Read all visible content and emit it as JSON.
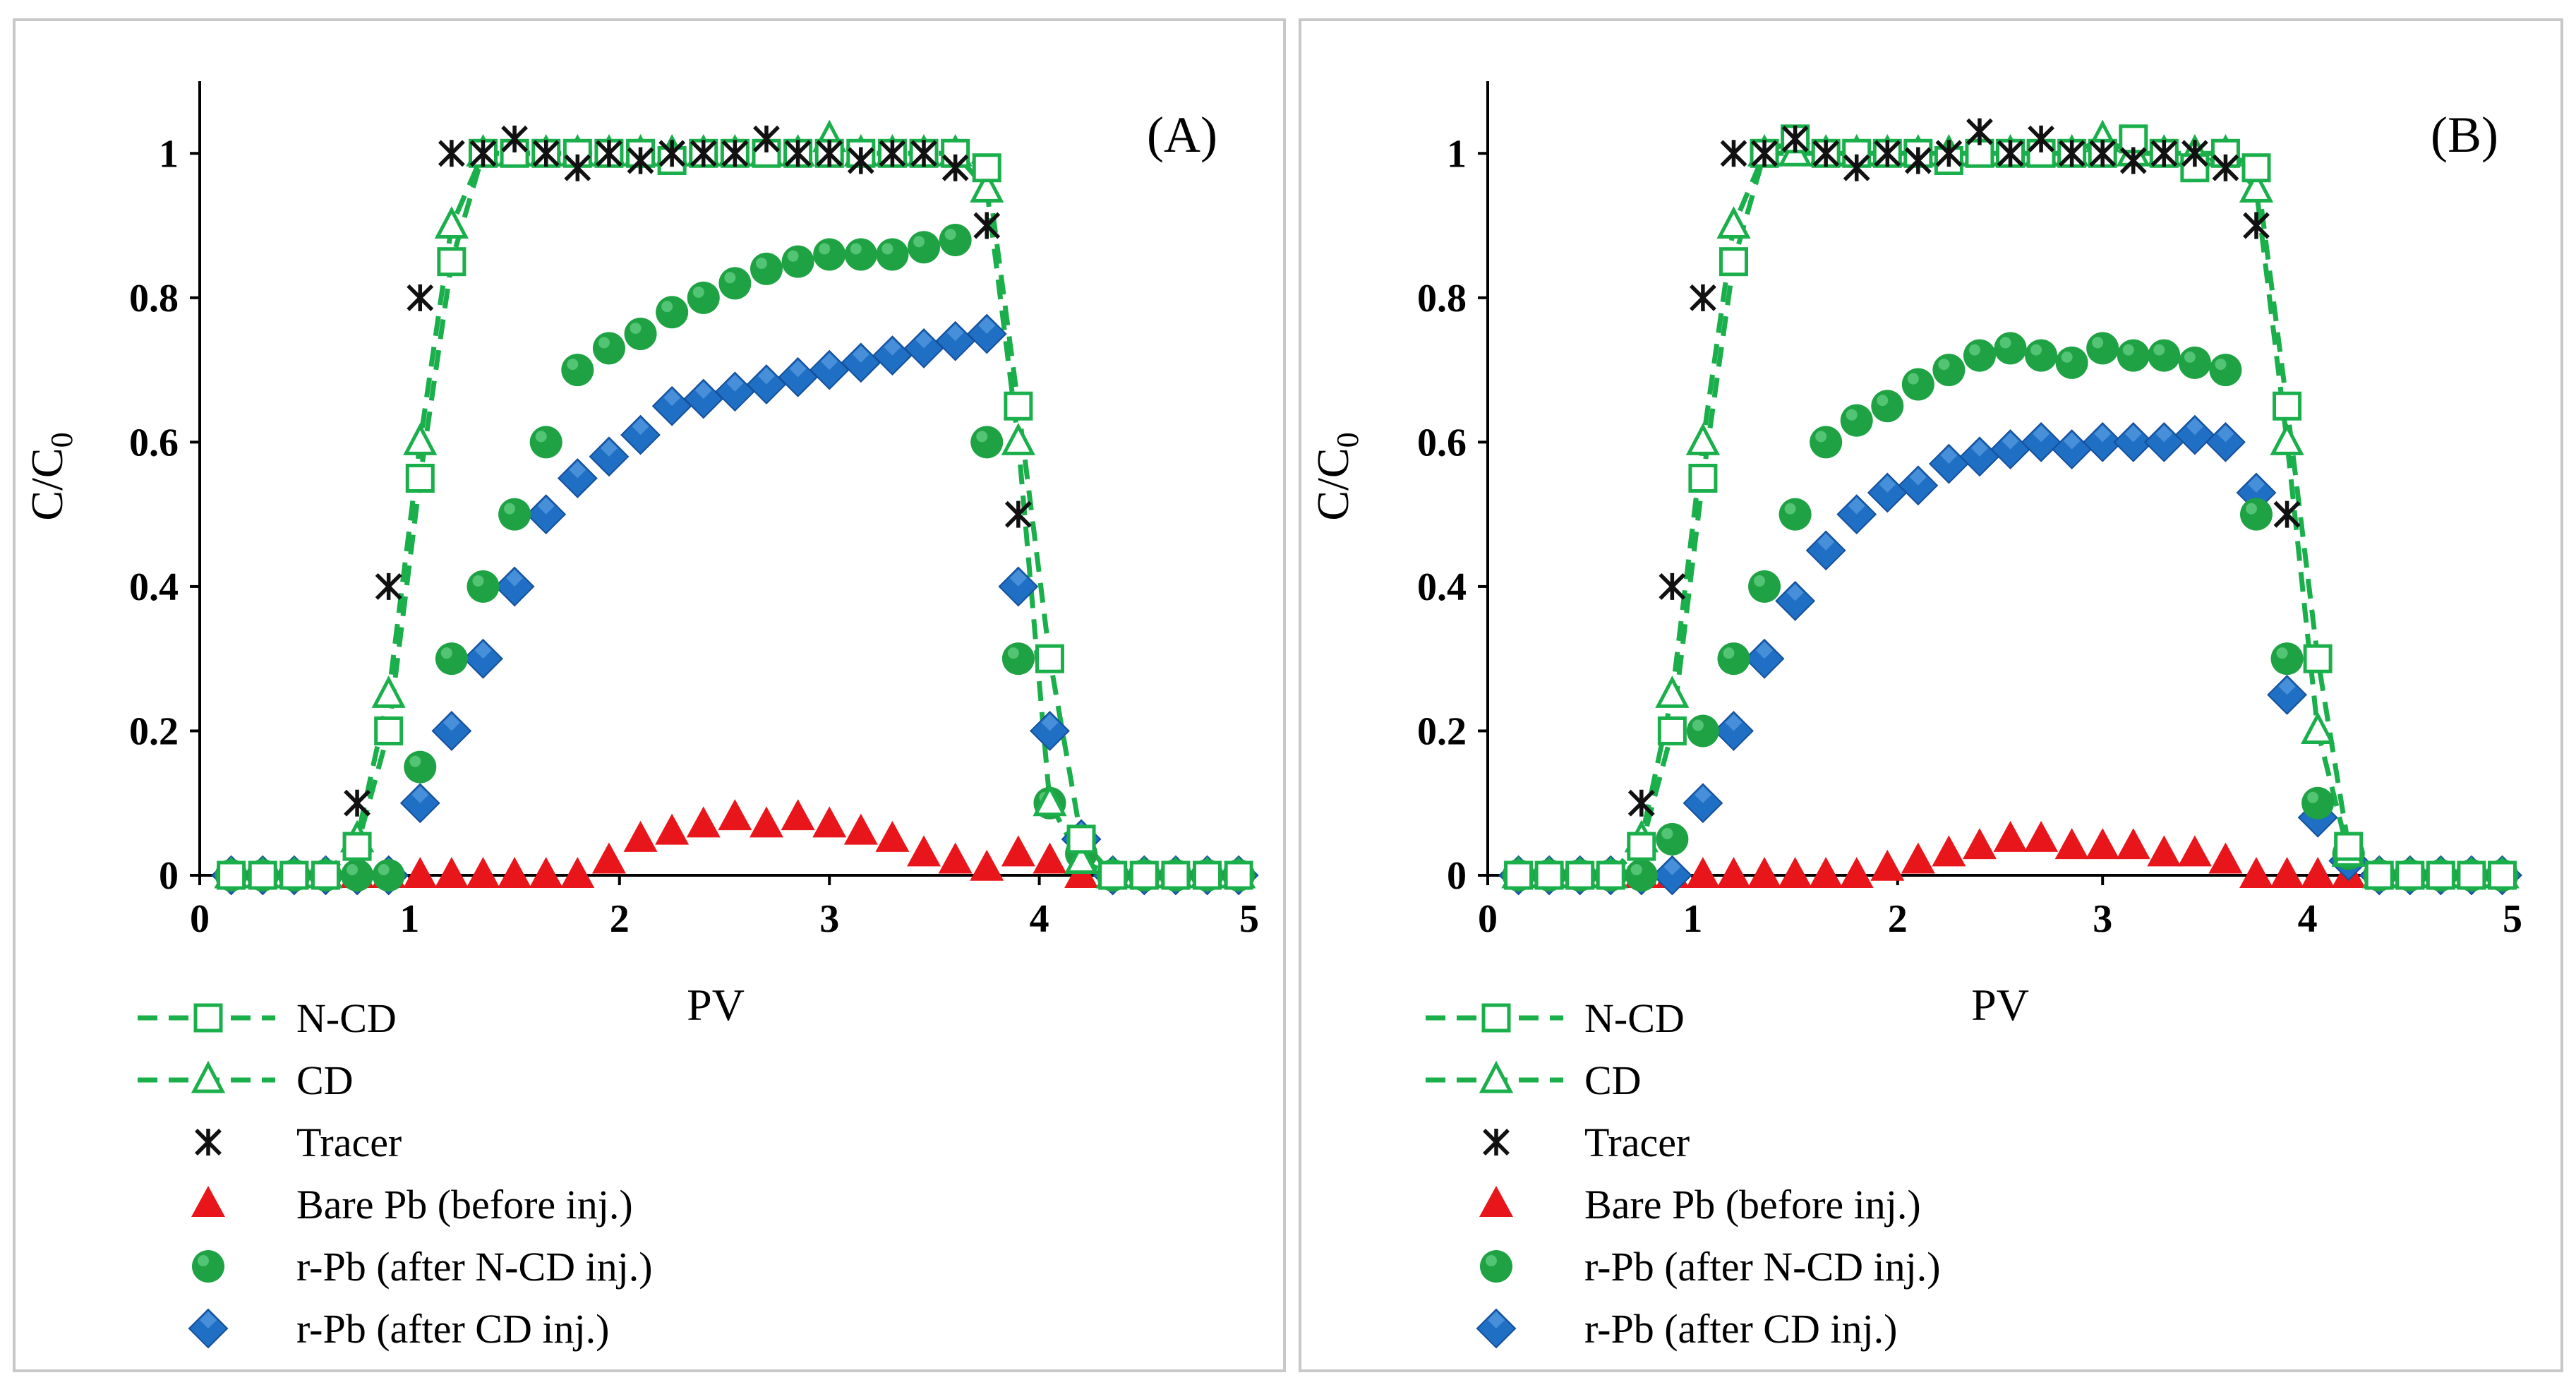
{
  "colors": {
    "ncd": "#1aaf4b",
    "cd": "#1aaf4b",
    "tracer": "#111111",
    "bare_pb": "#e8161b",
    "rpb_ncd": "#1fa244",
    "rpb_cd": "#1f6fc4",
    "panel_border": "#c8c8c8"
  },
  "chart_data": [
    {
      "type": "line",
      "panel_label": "(A)",
      "xlabel": "PV",
      "ylabel_main": "C/C",
      "ylabel_sub": "0",
      "xlim": [
        0,
        5
      ],
      "ylim": [
        0,
        1.1
      ],
      "xticks": [
        0,
        1,
        2,
        3,
        4,
        5
      ],
      "xtick_labels": [
        "0",
        "1",
        "2",
        "3",
        "4",
        "5"
      ],
      "yticks": [
        0,
        0.2,
        0.4,
        0.6,
        0.8,
        1
      ],
      "ytick_labels": [
        "0",
        "0.2",
        "0.4",
        "0.6",
        "0.8",
        "1"
      ],
      "legend": [
        {
          "key": "ncd",
          "label": "N-CD"
        },
        {
          "key": "cd",
          "label": "CD"
        },
        {
          "key": "tracer",
          "label": "Tracer"
        },
        {
          "key": "bare_pb",
          "label": "Bare Pb (before  inj.)"
        },
        {
          "key": "rpb_ncd",
          "label": "r-Pb (after N-CD inj.)"
        },
        {
          "key": "rpb_cd",
          "label": "r-Pb (after CD inj.)"
        }
      ],
      "series": [
        {
          "key": "ncd",
          "name": "N-CD",
          "style": "dashed-line-open-square",
          "x": [
            0.15,
            0.3,
            0.45,
            0.6,
            0.75,
            0.9,
            1.05,
            1.2,
            1.35,
            1.5,
            1.65,
            1.8,
            1.95,
            2.1,
            2.25,
            2.4,
            2.55,
            2.7,
            2.85,
            3.0,
            3.15,
            3.3,
            3.45,
            3.6,
            3.75,
            3.9,
            4.05,
            4.2,
            4.35,
            4.5,
            4.65,
            4.8,
            4.95
          ],
          "y": [
            0,
            0,
            0,
            0,
            0.04,
            0.2,
            0.55,
            0.85,
            1.0,
            1.0,
            1.0,
            1.0,
            1.0,
            1.0,
            0.99,
            1.0,
            1.0,
            1.0,
            1.0,
            1.0,
            1.0,
            1.0,
            1.0,
            1.0,
            0.98,
            0.65,
            0.3,
            0.05,
            0,
            0,
            0,
            0,
            0
          ]
        },
        {
          "key": "cd",
          "name": "CD",
          "style": "dashed-line-open-triangle",
          "x": [
            0.15,
            0.3,
            0.45,
            0.6,
            0.75,
            0.9,
            1.05,
            1.2,
            1.35,
            1.5,
            1.65,
            1.8,
            1.95,
            2.1,
            2.25,
            2.4,
            2.55,
            2.7,
            2.85,
            3.0,
            3.15,
            3.3,
            3.45,
            3.6,
            3.75,
            3.9,
            4.05,
            4.2,
            4.35,
            4.5,
            4.65,
            4.8,
            4.95
          ],
          "y": [
            0,
            0,
            0,
            0,
            0.05,
            0.25,
            0.6,
            0.9,
            1.0,
            1.0,
            1.0,
            1.0,
            1.0,
            1.0,
            1.0,
            1.0,
            1.0,
            1.0,
            1.0,
            1.02,
            1.0,
            1.0,
            1.0,
            1.0,
            0.95,
            0.6,
            0.1,
            0.02,
            0,
            0,
            0,
            0,
            0
          ]
        },
        {
          "key": "tracer",
          "name": "Tracer",
          "style": "asterisk",
          "x": [
            0.75,
            0.9,
            1.05,
            1.2,
            1.35,
            1.5,
            1.65,
            1.8,
            1.95,
            2.1,
            2.25,
            2.4,
            2.55,
            2.7,
            2.85,
            3.0,
            3.15,
            3.3,
            3.45,
            3.6,
            3.75,
            3.9
          ],
          "y": [
            0.1,
            0.4,
            0.8,
            1.0,
            1.0,
            1.02,
            1.0,
            0.98,
            1.0,
            0.99,
            1.0,
            1.0,
            1.0,
            1.02,
            1.0,
            1.0,
            0.99,
            1.0,
            1.0,
            0.98,
            0.9,
            0.5
          ]
        },
        {
          "key": "bare_pb",
          "name": "Bare Pb (before  inj.)",
          "style": "filled-triangle",
          "x": [
            0.15,
            0.3,
            0.45,
            0.6,
            0.75,
            0.9,
            1.05,
            1.2,
            1.35,
            1.5,
            1.65,
            1.8,
            1.95,
            2.1,
            2.25,
            2.4,
            2.55,
            2.7,
            2.85,
            3.0,
            3.15,
            3.3,
            3.45,
            3.6,
            3.75,
            3.9,
            4.05,
            4.2,
            4.35,
            4.5,
            4.65,
            4.8,
            4.95
          ],
          "y": [
            0,
            0,
            0,
            0,
            0,
            0,
            0,
            0,
            0,
            0,
            0,
            0,
            0.02,
            0.05,
            0.06,
            0.07,
            0.08,
            0.07,
            0.08,
            0.07,
            0.06,
            0.05,
            0.03,
            0.02,
            0.01,
            0.03,
            0.02,
            0,
            0,
            0,
            0,
            0,
            0
          ]
        },
        {
          "key": "rpb_ncd",
          "name": "r-Pb (after N-CD inj.)",
          "style": "filled-circle",
          "x": [
            0.15,
            0.3,
            0.45,
            0.6,
            0.75,
            0.9,
            1.05,
            1.2,
            1.35,
            1.5,
            1.65,
            1.8,
            1.95,
            2.1,
            2.25,
            2.4,
            2.55,
            2.7,
            2.85,
            3.0,
            3.15,
            3.3,
            3.45,
            3.6,
            3.75,
            3.9,
            4.05,
            4.2,
            4.35,
            4.5,
            4.65,
            4.8,
            4.95
          ],
          "y": [
            0,
            0,
            0,
            0,
            0,
            0,
            0.15,
            0.3,
            0.4,
            0.5,
            0.6,
            0.7,
            0.73,
            0.75,
            0.78,
            0.8,
            0.82,
            0.84,
            0.85,
            0.86,
            0.86,
            0.86,
            0.87,
            0.88,
            0.6,
            0.3,
            0.1,
            0.03,
            0,
            0,
            0,
            0,
            0
          ]
        },
        {
          "key": "rpb_cd",
          "name": "r-Pb (after CD inj.)",
          "style": "filled-diamond",
          "x": [
            0.15,
            0.3,
            0.45,
            0.6,
            0.75,
            0.9,
            1.05,
            1.2,
            1.35,
            1.5,
            1.65,
            1.8,
            1.95,
            2.1,
            2.25,
            2.4,
            2.55,
            2.7,
            2.85,
            3.0,
            3.15,
            3.3,
            3.45,
            3.6,
            3.75,
            3.9,
            4.05,
            4.2,
            4.35,
            4.5,
            4.65,
            4.8,
            4.95
          ],
          "y": [
            0,
            0,
            0,
            0,
            0,
            0,
            0.1,
            0.2,
            0.3,
            0.4,
            0.5,
            0.55,
            0.58,
            0.61,
            0.65,
            0.66,
            0.67,
            0.68,
            0.69,
            0.7,
            0.71,
            0.72,
            0.73,
            0.74,
            0.75,
            0.4,
            0.2,
            0.05,
            0,
            0,
            0,
            0,
            0
          ]
        }
      ]
    },
    {
      "type": "line",
      "panel_label": "(B)",
      "xlabel": "PV",
      "ylabel_main": "C/C",
      "ylabel_sub": "0",
      "xlim": [
        0,
        5
      ],
      "ylim": [
        0,
        1.1
      ],
      "xticks": [
        0,
        1,
        2,
        3,
        4,
        5
      ],
      "xtick_labels": [
        "0",
        "1",
        "2",
        "3",
        "4",
        "5"
      ],
      "yticks": [
        0,
        0.2,
        0.4,
        0.6,
        0.8,
        1
      ],
      "ytick_labels": [
        "0",
        "0.2",
        "0.4",
        "0.6",
        "0.8",
        "1"
      ],
      "legend": [
        {
          "key": "ncd",
          "label": "N-CD"
        },
        {
          "key": "cd",
          "label": "CD"
        },
        {
          "key": "tracer",
          "label": "Tracer"
        },
        {
          "key": "bare_pb",
          "label": "Bare Pb (before  inj.)"
        },
        {
          "key": "rpb_ncd",
          "label": "r-Pb (after N-CD inj.)"
        },
        {
          "key": "rpb_cd",
          "label": "r-Pb (after CD inj.)"
        }
      ],
      "series": [
        {
          "key": "ncd",
          "name": "N-CD",
          "style": "dashed-line-open-square",
          "x": [
            0.15,
            0.3,
            0.45,
            0.6,
            0.75,
            0.9,
            1.05,
            1.2,
            1.35,
            1.5,
            1.65,
            1.8,
            1.95,
            2.1,
            2.25,
            2.4,
            2.55,
            2.7,
            2.85,
            3.0,
            3.15,
            3.3,
            3.45,
            3.6,
            3.75,
            3.9,
            4.05,
            4.2,
            4.35,
            4.5,
            4.65,
            4.8,
            4.95
          ],
          "y": [
            0,
            0,
            0,
            0,
            0.04,
            0.2,
            0.55,
            0.85,
            1.0,
            1.02,
            1.0,
            1.0,
            1.0,
            1.0,
            0.99,
            1.0,
            1.0,
            1.0,
            1.0,
            1.0,
            1.02,
            1.0,
            0.98,
            1.0,
            0.98,
            0.65,
            0.3,
            0.04,
            0,
            0,
            0,
            0,
            0
          ]
        },
        {
          "key": "cd",
          "name": "CD",
          "style": "dashed-line-open-triangle",
          "x": [
            0.15,
            0.3,
            0.45,
            0.6,
            0.75,
            0.9,
            1.05,
            1.2,
            1.35,
            1.5,
            1.65,
            1.8,
            1.95,
            2.1,
            2.25,
            2.4,
            2.55,
            2.7,
            2.85,
            3.0,
            3.15,
            3.3,
            3.45,
            3.6,
            3.75,
            3.9,
            4.05,
            4.2,
            4.35,
            4.5,
            4.65,
            4.8,
            4.95
          ],
          "y": [
            0,
            0,
            0,
            0,
            0.05,
            0.25,
            0.6,
            0.9,
            1.0,
            1.0,
            1.0,
            1.0,
            1.0,
            1.0,
            1.0,
            1.0,
            1.0,
            1.0,
            1.0,
            1.02,
            1.0,
            1.0,
            1.0,
            1.0,
            0.95,
            0.6,
            0.2,
            0.03,
            0,
            0,
            0,
            0,
            0
          ]
        },
        {
          "key": "tracer",
          "name": "Tracer",
          "style": "asterisk",
          "x": [
            0.75,
            0.9,
            1.05,
            1.2,
            1.35,
            1.5,
            1.65,
            1.8,
            1.95,
            2.1,
            2.25,
            2.4,
            2.55,
            2.7,
            2.85,
            3.0,
            3.15,
            3.3,
            3.45,
            3.6,
            3.75,
            3.9
          ],
          "y": [
            0.1,
            0.4,
            0.8,
            1.0,
            1.0,
            1.02,
            1.0,
            0.98,
            1.0,
            0.99,
            1.0,
            1.03,
            1.0,
            1.02,
            1.0,
            1.0,
            0.99,
            1.0,
            1.0,
            0.98,
            0.9,
            0.5
          ]
        },
        {
          "key": "bare_pb",
          "name": "Bare Pb (before  inj.)",
          "style": "filled-triangle",
          "x": [
            0.15,
            0.3,
            0.45,
            0.6,
            0.75,
            0.9,
            1.05,
            1.2,
            1.35,
            1.5,
            1.65,
            1.8,
            1.95,
            2.1,
            2.25,
            2.4,
            2.55,
            2.7,
            2.85,
            3.0,
            3.15,
            3.3,
            3.45,
            3.6,
            3.75,
            3.9,
            4.05,
            4.2,
            4.35,
            4.5,
            4.65,
            4.8,
            4.95
          ],
          "y": [
            0,
            0,
            0,
            0,
            0,
            0,
            0,
            0,
            0,
            0,
            0,
            0,
            0.01,
            0.02,
            0.03,
            0.04,
            0.05,
            0.05,
            0.04,
            0.04,
            0.04,
            0.03,
            0.03,
            0.02,
            0,
            0,
            0,
            0,
            0,
            0,
            0,
            0,
            0
          ]
        },
        {
          "key": "rpb_ncd",
          "name": "r-Pb (after N-CD inj.)",
          "style": "filled-circle",
          "x": [
            0.15,
            0.3,
            0.45,
            0.6,
            0.75,
            0.9,
            1.05,
            1.2,
            1.35,
            1.5,
            1.65,
            1.8,
            1.95,
            2.1,
            2.25,
            2.4,
            2.55,
            2.7,
            2.85,
            3.0,
            3.15,
            3.3,
            3.45,
            3.6,
            3.75,
            3.9,
            4.05,
            4.2,
            4.35,
            4.5,
            4.65,
            4.8,
            4.95
          ],
          "y": [
            0,
            0,
            0,
            0,
            0,
            0.05,
            0.2,
            0.3,
            0.4,
            0.5,
            0.6,
            0.63,
            0.65,
            0.68,
            0.7,
            0.72,
            0.73,
            0.72,
            0.71,
            0.73,
            0.72,
            0.72,
            0.71,
            0.7,
            0.5,
            0.3,
            0.1,
            0.03,
            0,
            0,
            0,
            0,
            0
          ]
        },
        {
          "key": "rpb_cd",
          "name": "r-Pb (after CD inj.)",
          "style": "filled-diamond",
          "x": [
            0.15,
            0.3,
            0.45,
            0.6,
            0.75,
            0.9,
            1.05,
            1.2,
            1.35,
            1.5,
            1.65,
            1.8,
            1.95,
            2.1,
            2.25,
            2.4,
            2.55,
            2.7,
            2.85,
            3.0,
            3.15,
            3.3,
            3.45,
            3.6,
            3.75,
            3.9,
            4.05,
            4.2,
            4.35,
            4.5,
            4.65,
            4.8,
            4.95
          ],
          "y": [
            0,
            0,
            0,
            0,
            0,
            0,
            0.1,
            0.2,
            0.3,
            0.38,
            0.45,
            0.5,
            0.53,
            0.54,
            0.57,
            0.58,
            0.59,
            0.6,
            0.59,
            0.6,
            0.6,
            0.6,
            0.61,
            0.6,
            0.53,
            0.25,
            0.08,
            0.02,
            0,
            0,
            0,
            0,
            0
          ]
        }
      ]
    }
  ]
}
